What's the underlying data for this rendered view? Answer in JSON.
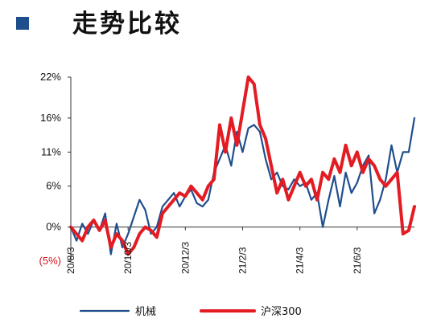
{
  "header": {
    "title": "走势比较"
  },
  "colors": {
    "title_square": "#1f4e8c",
    "series_1": "#1f4e8c",
    "series_2": "#e31b23",
    "negative_label": "#d4141c"
  },
  "chart_data": {
    "type": "line",
    "title": "走势比较",
    "xlabel": "",
    "ylabel": "",
    "ylim": [
      -5,
      22
    ],
    "yticks": [
      {
        "value": 22,
        "label": "22%"
      },
      {
        "value": 16,
        "label": "16%"
      },
      {
        "value": 11,
        "label": "11%"
      },
      {
        "value": 6,
        "label": "6%"
      },
      {
        "value": 0,
        "label": "0%"
      },
      {
        "value": -5,
        "label": "(5%)"
      }
    ],
    "x_ticks": [
      "20/8/3",
      "20/10/3",
      "20/12/3",
      "21/2/3",
      "21/4/3",
      "21/6/3"
    ],
    "x_tick_positions": [
      0,
      10,
      20,
      30,
      40,
      50
    ],
    "x_max": 60,
    "x": [
      0,
      1,
      2,
      3,
      4,
      5,
      6,
      7,
      8,
      9,
      10,
      11,
      12,
      13,
      14,
      15,
      16,
      17,
      18,
      19,
      20,
      21,
      22,
      23,
      24,
      25,
      26,
      27,
      28,
      29,
      30,
      31,
      32,
      33,
      34,
      35,
      36,
      37,
      38,
      39,
      40,
      41,
      42,
      43,
      44,
      45,
      46,
      47,
      48,
      49,
      50,
      51,
      52,
      53,
      54,
      55,
      56,
      57,
      58,
      59,
      60
    ],
    "series": [
      {
        "name": "机械",
        "color": "#1f4e8c",
        "values": [
          0,
          -2,
          0.5,
          -1,
          1,
          -0.5,
          2,
          -4,
          0.5,
          -3,
          -1,
          1.5,
          4,
          2.5,
          -1,
          0,
          3,
          4,
          5,
          3,
          4.5,
          5.5,
          3.5,
          3,
          4,
          8,
          10,
          12,
          9,
          14,
          11,
          14.5,
          15,
          14,
          10,
          7,
          8,
          6,
          5.5,
          7,
          6,
          6.5,
          4,
          5,
          0,
          4,
          7.5,
          3,
          8,
          5,
          6.5,
          9,
          10.5,
          2,
          4,
          7,
          12,
          8,
          11,
          11,
          16
        ]
      },
      {
        "name": "沪深300",
        "color": "#e31b23",
        "values": [
          0,
          -1,
          -2,
          0,
          1,
          -0.5,
          1,
          -3,
          -1,
          -2,
          -4,
          -3,
          -1,
          0,
          -0.5,
          -1.5,
          2,
          3,
          4,
          5,
          4.5,
          6,
          5,
          4,
          6,
          7,
          15,
          11,
          16,
          12,
          17,
          22,
          21,
          15,
          13,
          9,
          5,
          7,
          4,
          6,
          8,
          6,
          7,
          4,
          8,
          7,
          10,
          8,
          12,
          9,
          11,
          8,
          10,
          9,
          7,
          6,
          7,
          8,
          -1,
          -0.5,
          3
        ]
      }
    ],
    "legend": {
      "position": "bottom"
    }
  }
}
